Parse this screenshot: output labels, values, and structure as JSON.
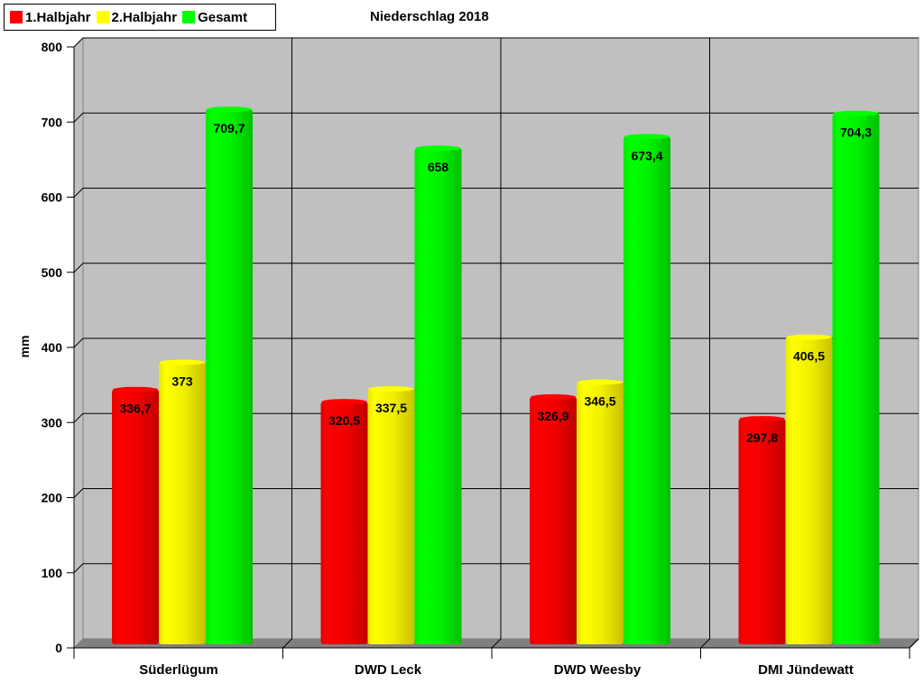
{
  "legend": {
    "items": [
      {
        "label": "1.Halbjahr",
        "color": "#ff0000"
      },
      {
        "label": "2.Halbjahr",
        "color": "#ffff00"
      },
      {
        "label": "Gesamt",
        "color": "#00ff00"
      }
    ]
  },
  "title": "Niederschlag 2018",
  "ylabel": "mm",
  "chart_data": {
    "type": "bar",
    "title": "Niederschlag 2018",
    "xlabel": "",
    "ylabel": "mm",
    "ylim": [
      0,
      800
    ],
    "yticks": [
      0,
      100,
      200,
      300,
      400,
      500,
      600,
      700,
      800
    ],
    "grid": true,
    "legend_position": "top-left",
    "categories": [
      "Süderlügum",
      "DWD Leck",
      "DWD Weesby",
      "DMI Jündewatt"
    ],
    "series": [
      {
        "name": "1.Halbjahr",
        "color": "#ff0000",
        "values": [
          336.7,
          320.5,
          326.9,
          297.8
        ],
        "labels": [
          "336,7",
          "320,5",
          "326,9",
          "297,8"
        ]
      },
      {
        "name": "2.Halbjahr",
        "color": "#ffff00",
        "values": [
          373,
          337.5,
          346.5,
          406.5
        ],
        "labels": [
          "373",
          "337,5",
          "346,5",
          "406,5"
        ]
      },
      {
        "name": "Gesamt",
        "color": "#00ff00",
        "values": [
          709.7,
          658,
          673.4,
          704.3
        ],
        "labels": [
          "709,7",
          "658",
          "673,4",
          "704,3"
        ]
      }
    ]
  },
  "xaxis": {
    "labels": [
      "Süderlügum",
      "DWD Leck",
      "DWD Weesby",
      "DMI Jündewatt"
    ]
  },
  "yaxis": {
    "ticks": [
      "0",
      "100",
      "200",
      "300",
      "400",
      "500",
      "600",
      "700",
      "800"
    ]
  }
}
